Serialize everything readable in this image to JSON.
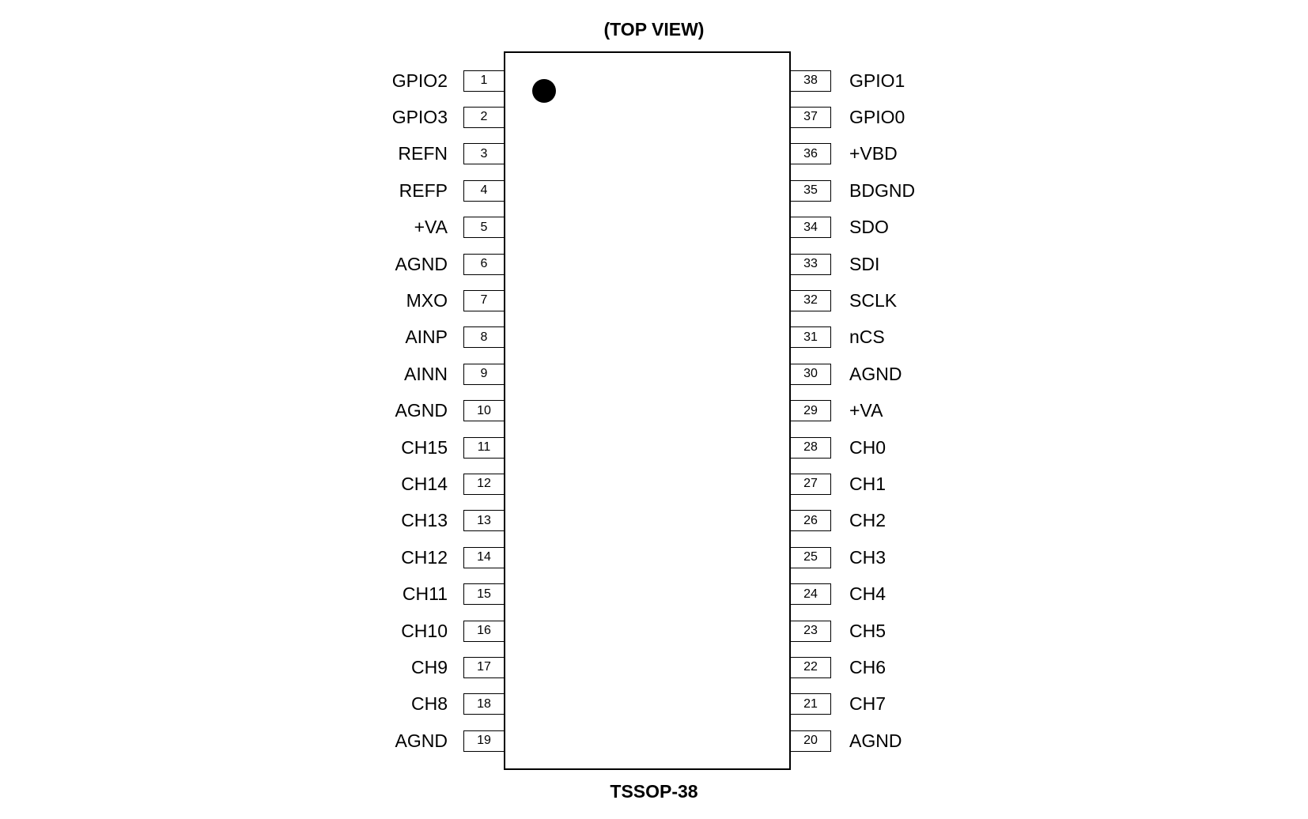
{
  "title": "(TOP VIEW)",
  "package": "TSSOP-38",
  "left_pins": [
    {
      "num": "1",
      "name": "GPIO2"
    },
    {
      "num": "2",
      "name": "GPIO3"
    },
    {
      "num": "3",
      "name": "REFN"
    },
    {
      "num": "4",
      "name": "REFP"
    },
    {
      "num": "5",
      "name": "+VA"
    },
    {
      "num": "6",
      "name": "AGND"
    },
    {
      "num": "7",
      "name": "MXO"
    },
    {
      "num": "8",
      "name": "AINP"
    },
    {
      "num": "9",
      "name": "AINN"
    },
    {
      "num": "10",
      "name": "AGND"
    },
    {
      "num": "11",
      "name": "CH15"
    },
    {
      "num": "12",
      "name": "CH14"
    },
    {
      "num": "13",
      "name": "CH13"
    },
    {
      "num": "14",
      "name": "CH12"
    },
    {
      "num": "15",
      "name": "CH11"
    },
    {
      "num": "16",
      "name": "CH10"
    },
    {
      "num": "17",
      "name": "CH9"
    },
    {
      "num": "18",
      "name": "CH8"
    },
    {
      "num": "19",
      "name": "AGND"
    }
  ],
  "right_pins": [
    {
      "num": "38",
      "name": "GPIO1"
    },
    {
      "num": "37",
      "name": "GPIO0"
    },
    {
      "num": "36",
      "name": "+VBD"
    },
    {
      "num": "35",
      "name": "BDGND"
    },
    {
      "num": "34",
      "name": "SDO"
    },
    {
      "num": "33",
      "name": "SDI"
    },
    {
      "num": "32",
      "name": "SCLK"
    },
    {
      "num": "31",
      "name": "nCS"
    },
    {
      "num": "30",
      "name": "AGND"
    },
    {
      "num": "29",
      "name": "+VA"
    },
    {
      "num": "28",
      "name": "CH0"
    },
    {
      "num": "27",
      "name": "CH1"
    },
    {
      "num": "26",
      "name": "CH2"
    },
    {
      "num": "25",
      "name": "CH3"
    },
    {
      "num": "24",
      "name": "CH4"
    },
    {
      "num": "23",
      "name": "CH5"
    },
    {
      "num": "22",
      "name": "CH6"
    },
    {
      "num": "21",
      "name": "CH7"
    },
    {
      "num": "20",
      "name": "AGND"
    }
  ]
}
